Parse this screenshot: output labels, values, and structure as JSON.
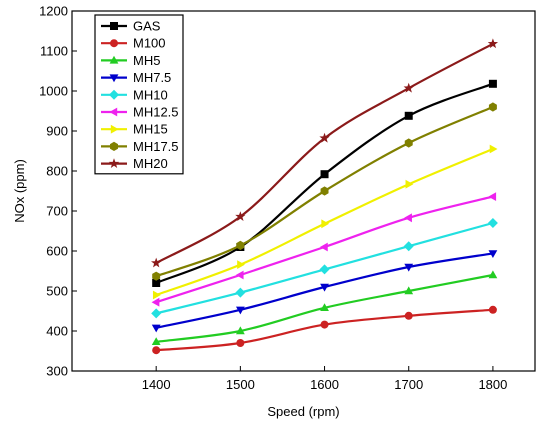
{
  "chart_data": {
    "type": "line",
    "title": "",
    "xlabel": "Speed (rpm)",
    "ylabel": "NOx (ppm)",
    "x": [
      1400,
      1500,
      1600,
      1700,
      1800
    ],
    "xlim": [
      1300,
      1850
    ],
    "ylim": [
      300,
      1200
    ],
    "xticks": [
      1400,
      1500,
      1600,
      1700,
      1800
    ],
    "yticks": [
      300,
      400,
      500,
      600,
      700,
      800,
      900,
      1000,
      1100,
      1200
    ],
    "grid": false,
    "legend_position": "top-left",
    "series": [
      {
        "name": "GAS",
        "color": "#000000",
        "marker": "square",
        "values": [
          520,
          610,
          792,
          938,
          1018
        ]
      },
      {
        "name": "M100",
        "color": "#cc2222",
        "marker": "circle",
        "values": [
          352,
          370,
          416,
          438,
          453
        ]
      },
      {
        "name": "MH5",
        "color": "#22cc22",
        "marker": "triangle-up",
        "values": [
          373,
          400,
          458,
          500,
          540
        ]
      },
      {
        "name": "MH7.5",
        "color": "#0000cc",
        "marker": "triangle-down",
        "values": [
          408,
          453,
          510,
          560,
          594
        ]
      },
      {
        "name": "MH10",
        "color": "#22e0e0",
        "marker": "diamond",
        "values": [
          444,
          496,
          554,
          612,
          670
        ]
      },
      {
        "name": "MH12.5",
        "color": "#ee22ee",
        "marker": "triangle-left",
        "values": [
          472,
          540,
          610,
          683,
          736
        ]
      },
      {
        "name": "MH15",
        "color": "#f0f000",
        "marker": "triangle-right",
        "values": [
          490,
          566,
          668,
          767,
          855
        ]
      },
      {
        "name": "MH17.5",
        "color": "#808000",
        "marker": "hexagon",
        "values": [
          537,
          614,
          750,
          870,
          960
        ]
      },
      {
        "name": "MH20",
        "color": "#8b1a1a",
        "marker": "star",
        "values": [
          570,
          686,
          882,
          1007,
          1118
        ]
      }
    ]
  }
}
